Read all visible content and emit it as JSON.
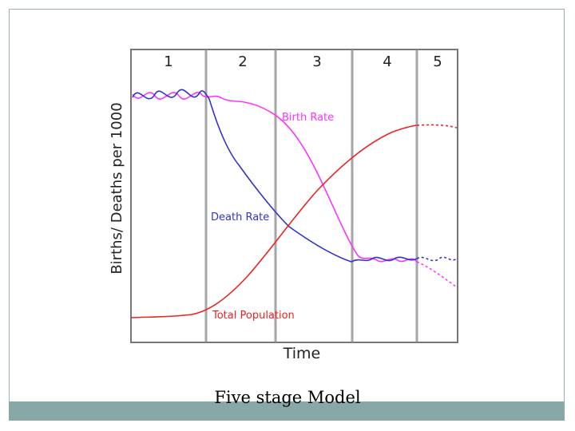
{
  "slide": {
    "caption": "Five stage Model"
  },
  "colors": {
    "birth_rate": "#ff33ff",
    "death_rate": "#3333cc",
    "total_population": "#ee2222",
    "band": "#88a8a8",
    "divider": "#888888"
  },
  "chart_data": {
    "type": "line",
    "ylabel": "Births/ Deaths per 1000",
    "xlabel": "Time",
    "stages": [
      "1",
      "2",
      "3",
      "4",
      "5"
    ],
    "series_labels": {
      "birth": "Birth Rate",
      "death": "Death Rate",
      "population": "Total Population"
    }
  }
}
